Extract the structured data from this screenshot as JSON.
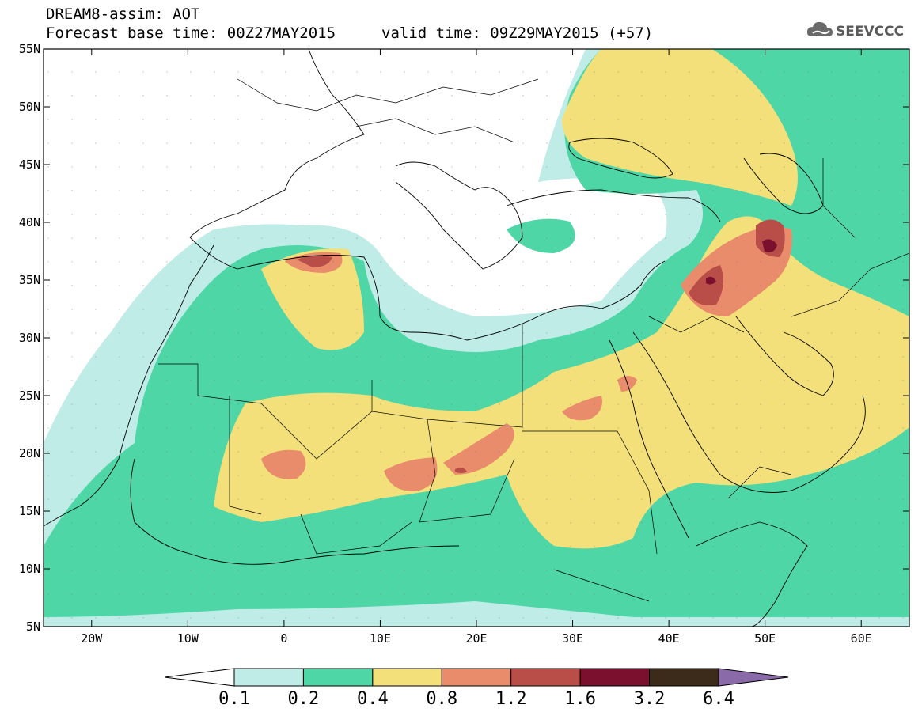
{
  "header": {
    "title": "DREAM8-assim: AOT",
    "base_time": "Forecast base time: 00Z27MAY2015",
    "valid_time": "valid time: 09Z29MAY2015 (+57)",
    "logo_text": "SEEVCCC"
  },
  "map": {
    "lat_labels": [
      "55N",
      "50N",
      "45N",
      "40N",
      "35N",
      "30N",
      "25N",
      "20N",
      "15N",
      "10N",
      "5N"
    ],
    "lon_labels": [
      "20W",
      "10W",
      "0",
      "10E",
      "20E",
      "30E",
      "40E",
      "50E",
      "60E"
    ],
    "lon_range": [
      -25,
      65
    ],
    "lat_range": [
      5,
      55
    ]
  },
  "colorbar": {
    "labels": [
      "0.1",
      "0.2",
      "0.4",
      "0.8",
      "1.2",
      "1.6",
      "3.2",
      "6.4"
    ],
    "colors": [
      "#ffffff",
      "#bfece6",
      "#4fd6a6",
      "#f3e07a",
      "#e98c6c",
      "#b94e48",
      "#7a0f2e",
      "#3c2a1a",
      "#8a6aa8"
    ]
  }
}
